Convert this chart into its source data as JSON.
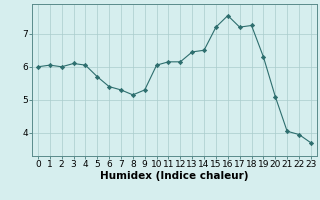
{
  "x": [
    0,
    1,
    2,
    3,
    4,
    5,
    6,
    7,
    8,
    9,
    10,
    11,
    12,
    13,
    14,
    15,
    16,
    17,
    18,
    19,
    20,
    21,
    22,
    23
  ],
  "y": [
    6.0,
    6.05,
    6.0,
    6.1,
    6.05,
    5.7,
    5.4,
    5.3,
    5.15,
    5.3,
    6.05,
    6.15,
    6.15,
    6.45,
    6.5,
    7.2,
    7.55,
    7.2,
    7.25,
    6.3,
    5.1,
    4.05,
    3.95,
    3.7
  ],
  "line_color": "#2d6e6e",
  "marker": "D",
  "marker_size": 2.2,
  "bg_color": "#d6eeee",
  "grid_color": "#aacccc",
  "xlabel": "Humidex (Indice chaleur)",
  "xlabel_fontsize": 7.5,
  "tick_fontsize": 6.5,
  "yticks": [
    4,
    5,
    6,
    7
  ],
  "ylim": [
    3.3,
    7.9
  ],
  "xlim": [
    -0.5,
    23.5
  ]
}
